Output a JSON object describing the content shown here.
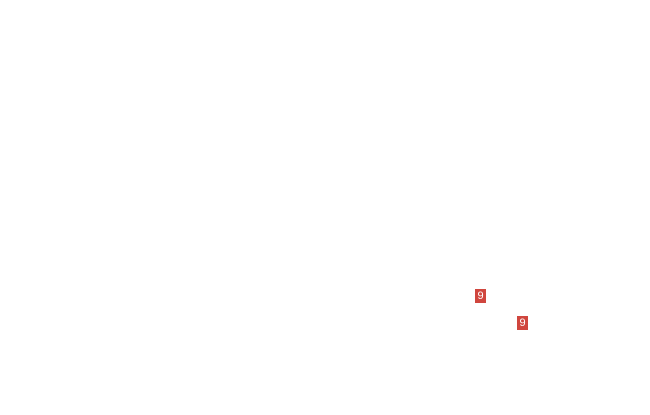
{
  "badge_color": "#d0463e",
  "badges": [
    {
      "label": "9"
    },
    {
      "label": "9"
    }
  ]
}
